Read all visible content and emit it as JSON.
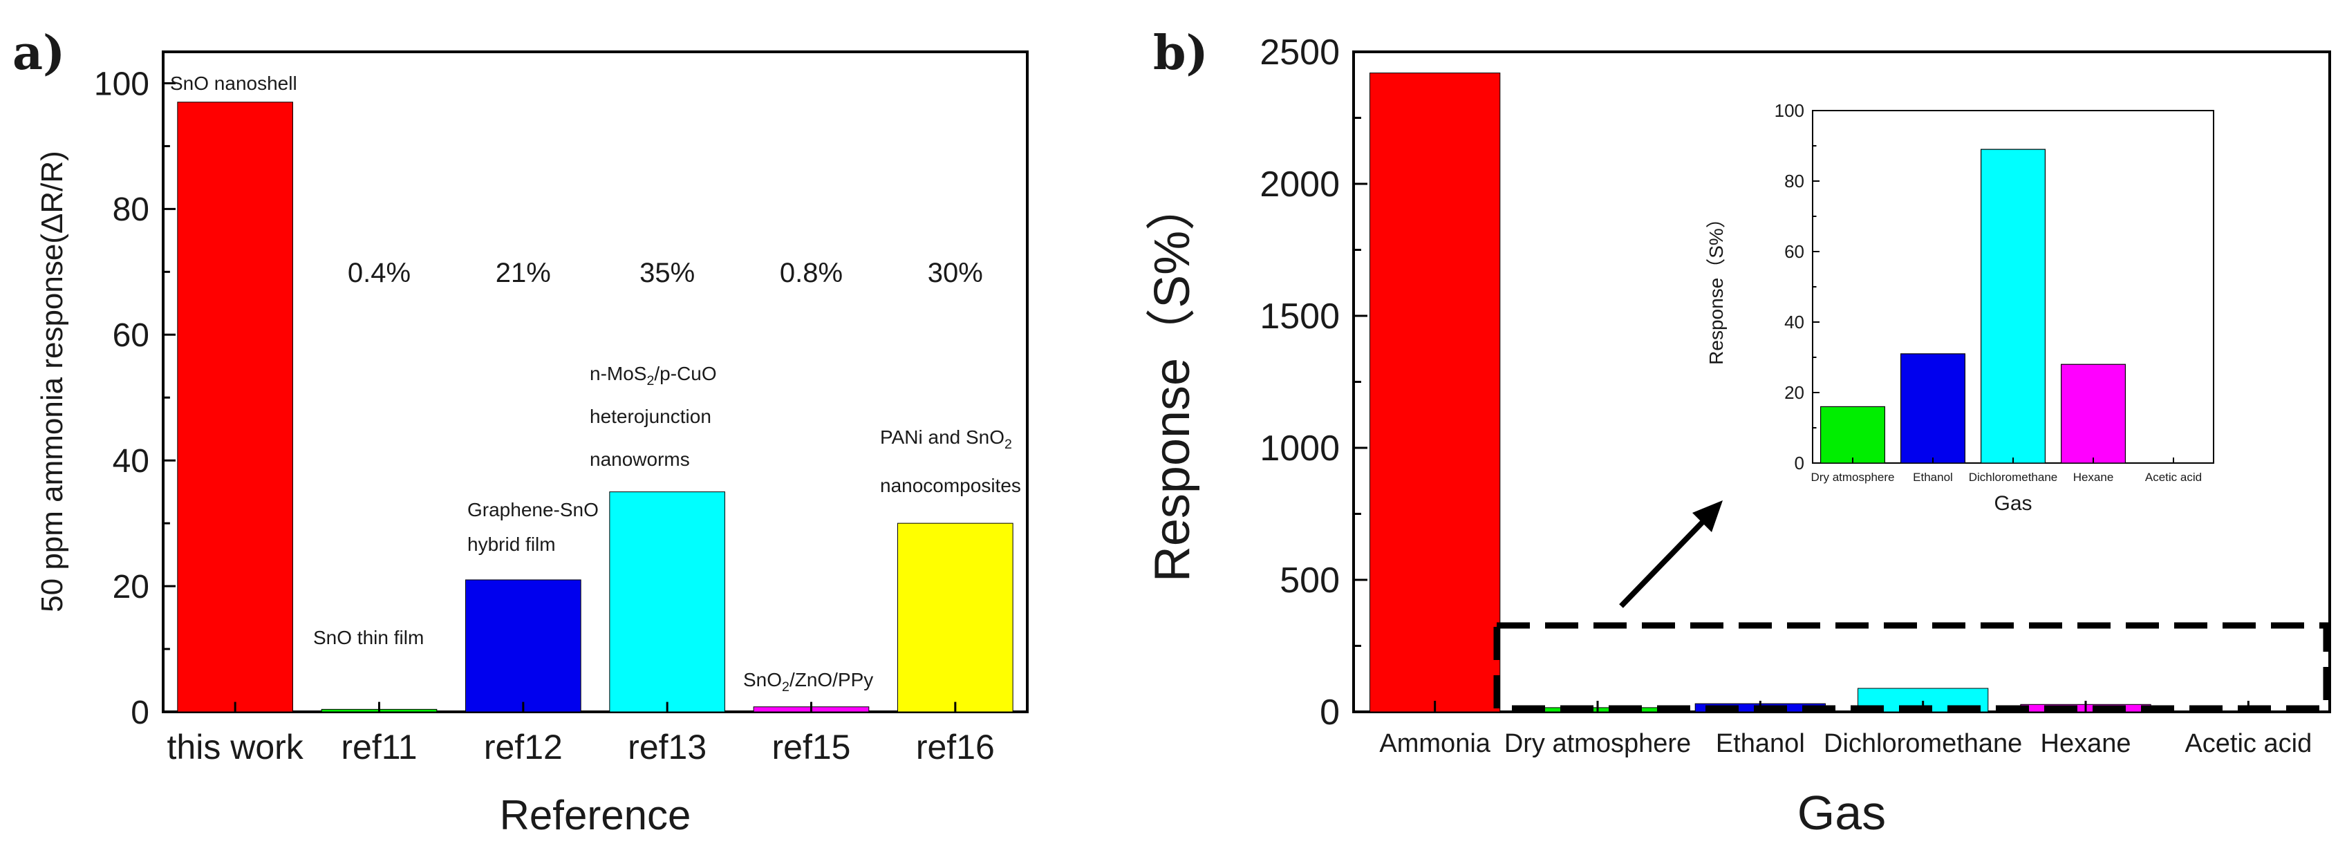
{
  "panel_a": {
    "label": "a)",
    "chart_data": {
      "type": "bar",
      "title": "",
      "xlabel": "Reference",
      "ylabel": "50 ppm ammonia response(ΔR/R)",
      "ylim": [
        0,
        105
      ],
      "yticks": [
        0,
        20,
        40,
        60,
        80,
        100
      ],
      "categories": [
        "this work",
        "ref11",
        "ref12",
        "ref13",
        "ref15",
        "ref16"
      ],
      "values": [
        97,
        0.4,
        21,
        35,
        0.8,
        30
      ],
      "colors": [
        "#ff0000",
        "#00ee00",
        "#0000ee",
        "#00ffff",
        "#ff00ff",
        "#ffff00"
      ],
      "percent_labels": [
        "",
        "0.4%",
        "21%",
        "35%",
        "0.8%",
        "30%"
      ],
      "bar_annotations": [
        [
          "SnO nanoshell"
        ],
        [
          "SnO thin film"
        ],
        [
          "Graphene-SnO",
          "hybrid film"
        ],
        [
          "n-MoS2/p-CuO",
          "heterojunction",
          "nanoworms"
        ],
        [
          "SnO2/ZnO/PPy"
        ],
        [
          "PANi and SnO2",
          "nanocomposites"
        ]
      ]
    }
  },
  "panel_b": {
    "label": "b)",
    "chart_data": {
      "type": "bar",
      "title": "",
      "xlabel": "Gas",
      "ylabel": "Response（S%）",
      "ylim": [
        0,
        2500
      ],
      "yticks": [
        0,
        500,
        1000,
        1500,
        2000,
        2500
      ],
      "categories": [
        "Ammonia",
        "Dry atmosphere",
        "Ethanol",
        "Dichloromethane",
        "Hexane",
        "Acetic acid"
      ],
      "values": [
        2420,
        16,
        31,
        89,
        28,
        0
      ],
      "colors": [
        "#ff0000",
        "#00ee00",
        "#0000ee",
        "#00ffff",
        "#ff00ff",
        "#ffff00"
      ]
    },
    "inset": {
      "chart_data": {
        "type": "bar",
        "title": "",
        "xlabel": "Gas",
        "ylabel": "Response（S%）",
        "ylim": [
          0,
          100
        ],
        "yticks": [
          0,
          20,
          40,
          60,
          80,
          100
        ],
        "categories": [
          "Dry atmosphere",
          "Ethanol",
          "Dichloromethane",
          "Hexane",
          "Acetic acid"
        ],
        "values": [
          16,
          31,
          89,
          28,
          0
        ],
        "colors": [
          "#00ee00",
          "#0000ee",
          "#00ffff",
          "#ff00ff",
          "#ffff00"
        ]
      }
    }
  }
}
